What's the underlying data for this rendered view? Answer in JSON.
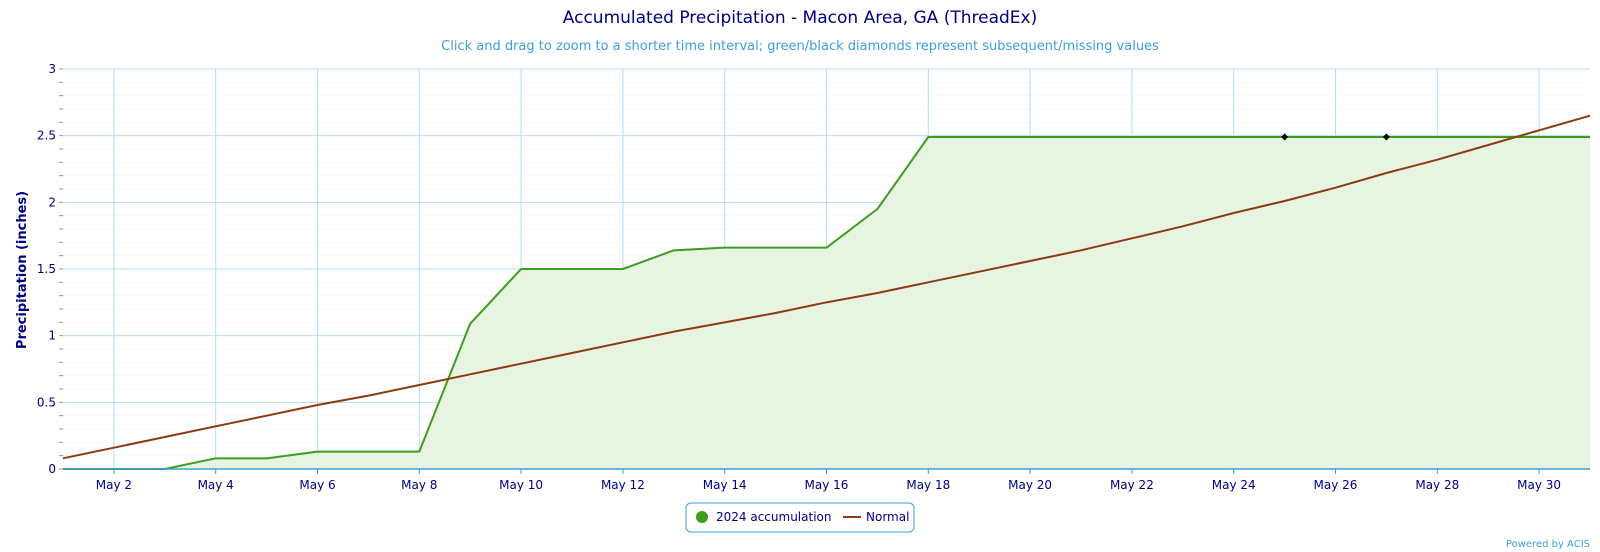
{
  "chart_data": {
    "type": "area",
    "title": "Accumulated Precipitation - Macon Area, GA (ThreadEx)",
    "subtitle": "Click and drag to zoom to a shorter time interval; green/black diamonds represent subsequent/missing values",
    "xlabel": "",
    "ylabel": "Precipitation (inches)",
    "ylim": [
      0,
      3
    ],
    "xlim": [
      1,
      31
    ],
    "yticks": [
      "0",
      "0.5",
      "1",
      "1.5",
      "2",
      "2.5",
      "3"
    ],
    "yticks_values": [
      0,
      0.5,
      1,
      1.5,
      2,
      2.5,
      3
    ],
    "xticks": [
      "May 2",
      "May 4",
      "May 6",
      "May 8",
      "May 10",
      "May 12",
      "May 14",
      "May 16",
      "May 18",
      "May 20",
      "May 22",
      "May 24",
      "May 26",
      "May 28",
      "May 30"
    ],
    "xticks_values": [
      2,
      4,
      6,
      8,
      10,
      12,
      14,
      16,
      18,
      20,
      22,
      24,
      26,
      28,
      30
    ],
    "grid": true,
    "legend_position": "bottom-center",
    "series": [
      {
        "name": "2024 accumulation",
        "color": "#3e9c20",
        "fill": "#e8f4e2",
        "style": "area",
        "x": [
          1,
          2,
          3,
          4,
          5,
          6,
          7,
          8,
          9,
          10,
          11,
          12,
          13,
          14,
          15,
          16,
          17,
          18,
          19,
          20,
          21,
          22,
          23,
          24,
          25,
          26,
          27,
          28,
          29,
          30,
          31
        ],
        "values": [
          0,
          0,
          0,
          0.08,
          0.08,
          0.13,
          0.13,
          0.13,
          1.09,
          1.5,
          1.5,
          1.5,
          1.64,
          1.66,
          1.66,
          1.66,
          1.95,
          2.49,
          2.49,
          2.49,
          2.49,
          2.49,
          2.49,
          2.49,
          2.49,
          2.49,
          2.49,
          2.49,
          2.49,
          2.49,
          2.49
        ]
      },
      {
        "name": "Normal",
        "color": "#8b3a12",
        "style": "line",
        "x": [
          1,
          2,
          3,
          4,
          5,
          6,
          7,
          8,
          9,
          10,
          11,
          12,
          13,
          14,
          15,
          16,
          17,
          18,
          19,
          20,
          21,
          22,
          23,
          24,
          25,
          26,
          27,
          28,
          29,
          30,
          31
        ],
        "values": [
          0.08,
          0.16,
          0.24,
          0.32,
          0.4,
          0.48,
          0.55,
          0.63,
          0.71,
          0.79,
          0.87,
          0.95,
          1.03,
          1.1,
          1.17,
          1.25,
          1.32,
          1.4,
          1.48,
          1.56,
          1.64,
          1.73,
          1.82,
          1.92,
          2.01,
          2.11,
          2.22,
          2.32,
          2.43,
          2.54,
          2.65
        ]
      }
    ],
    "missing_markers": {
      "color": "#000000",
      "x": [
        25,
        27
      ],
      "values": [
        2.49,
        2.49
      ]
    }
  },
  "legend": {
    "items": [
      {
        "label": "2024 accumulation",
        "color": "#3e9c20",
        "symbol": "dot"
      },
      {
        "label": "Normal",
        "color": "#8b3a12",
        "symbol": "line"
      }
    ]
  },
  "credit": "Powered by ACIS",
  "colors": {
    "title": "#000080",
    "subtitle": "#3aa0d8",
    "grid": "#b8dcf0",
    "axis": "#3aa0d8"
  }
}
